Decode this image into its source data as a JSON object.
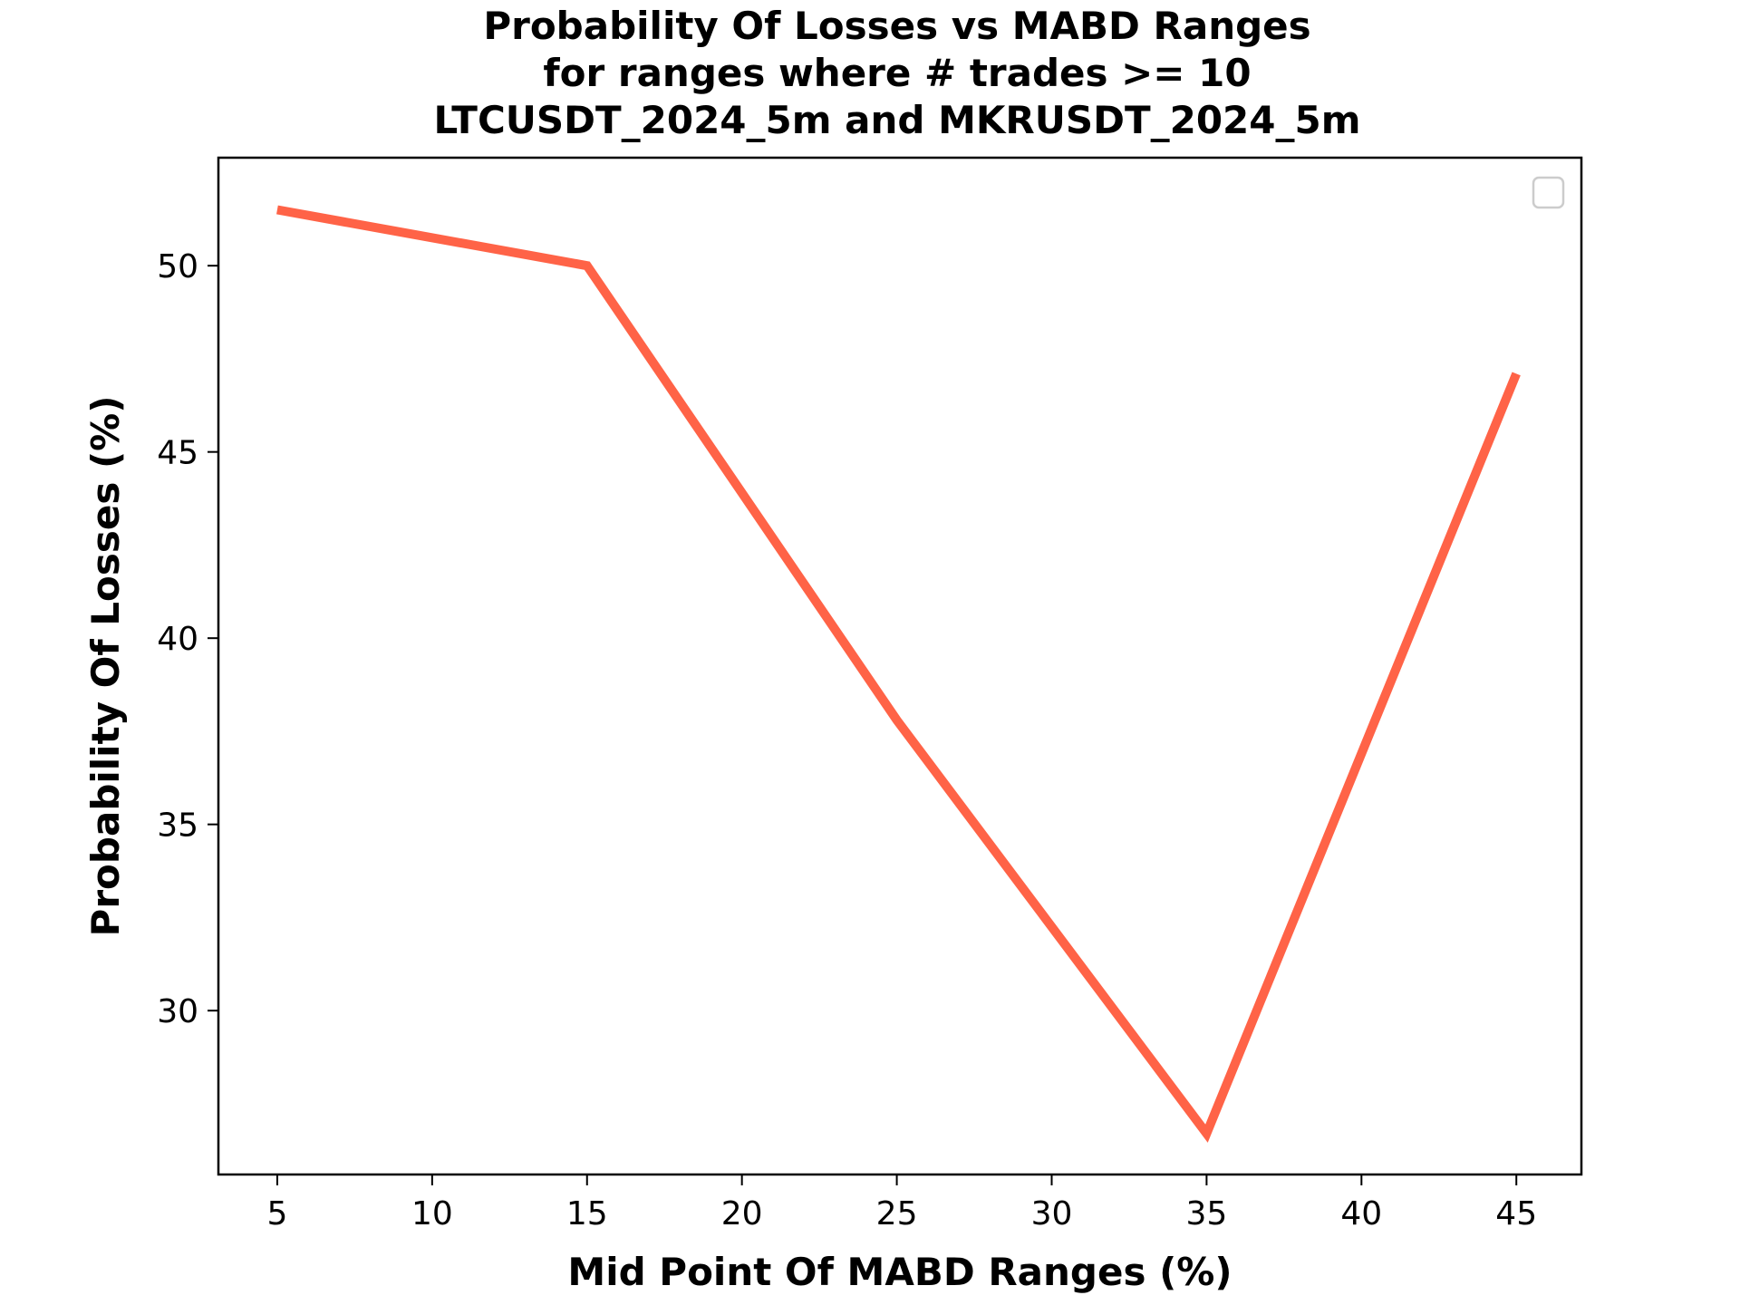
{
  "chart_data": {
    "type": "line",
    "title_lines": [
      "Probability Of Losses vs MABD Ranges",
      "for ranges where # trades >= 10",
      "LTCUSDT_2024_5m and MKRUSDT_2024_5m"
    ],
    "xlabel": "Mid Point Of MABD Ranges (%)",
    "ylabel": "Probability Of Losses (%)",
    "x": [
      5,
      15,
      25,
      35,
      45
    ],
    "series": [
      {
        "values": [
          51.5,
          50.0,
          37.8,
          26.7,
          47.1
        ],
        "color": "#ff6347"
      }
    ],
    "xticks": [
      "5",
      "10",
      "15",
      "20",
      "25",
      "30",
      "35",
      "40",
      "45"
    ],
    "yticks": [
      "30",
      "35",
      "40",
      "45",
      "50"
    ],
    "xlim": [
      3.1,
      47.1
    ],
    "ylim": [
      25.6,
      52.9
    ],
    "grid": false,
    "legend": "top-right (empty)"
  }
}
